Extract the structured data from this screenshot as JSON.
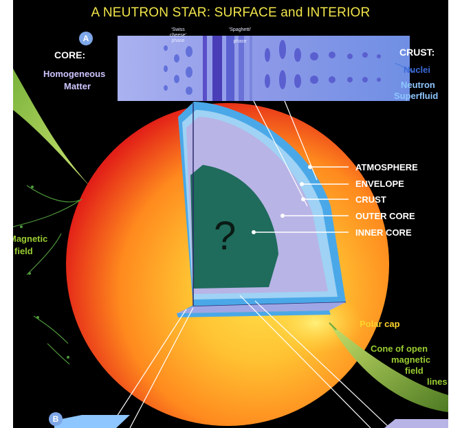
{
  "title": "A NEUTRON STAR:  SURFACE and INTERIOR",
  "inset": {
    "badge": "A",
    "core_heading": "CORE:",
    "core_desc_line1": "Homogeneous",
    "core_desc_line2": "Matter",
    "swiss_line1": "'Swiss",
    "swiss_line2": "cheese'",
    "swiss_line3": "phase",
    "spaghetti_line1": "'Spaghetti'",
    "spaghetti_line2": "phase",
    "crust_heading": "CRUST:",
    "nuclei": "Nuclei",
    "neutron_line1": "Neutron",
    "neutron_line2": "Superfluid"
  },
  "layers": [
    "ATMOSPHERE",
    "ENVELOPE",
    "CRUST",
    "OUTER CORE",
    "INNER CORE"
  ],
  "inner_core_mark": "?",
  "magnetic_field_line1": "Magnetic",
  "magnetic_field_line2": "field",
  "polar_cap": "Polar cap",
  "cone_line1": "Cone of open",
  "cone_line2": "magnetic",
  "cone_line3": "field",
  "cone_line4": "lines",
  "bottom_badge": "B",
  "colors": {
    "title": "#f2e64a",
    "star_center": "#ffd84a",
    "star_edge": "#e8201a",
    "inner_core": "#1f6b5c",
    "outer_core": "#b8b4e6",
    "crust": "#4aa8e8",
    "field_lines": "#6aa53a"
  }
}
